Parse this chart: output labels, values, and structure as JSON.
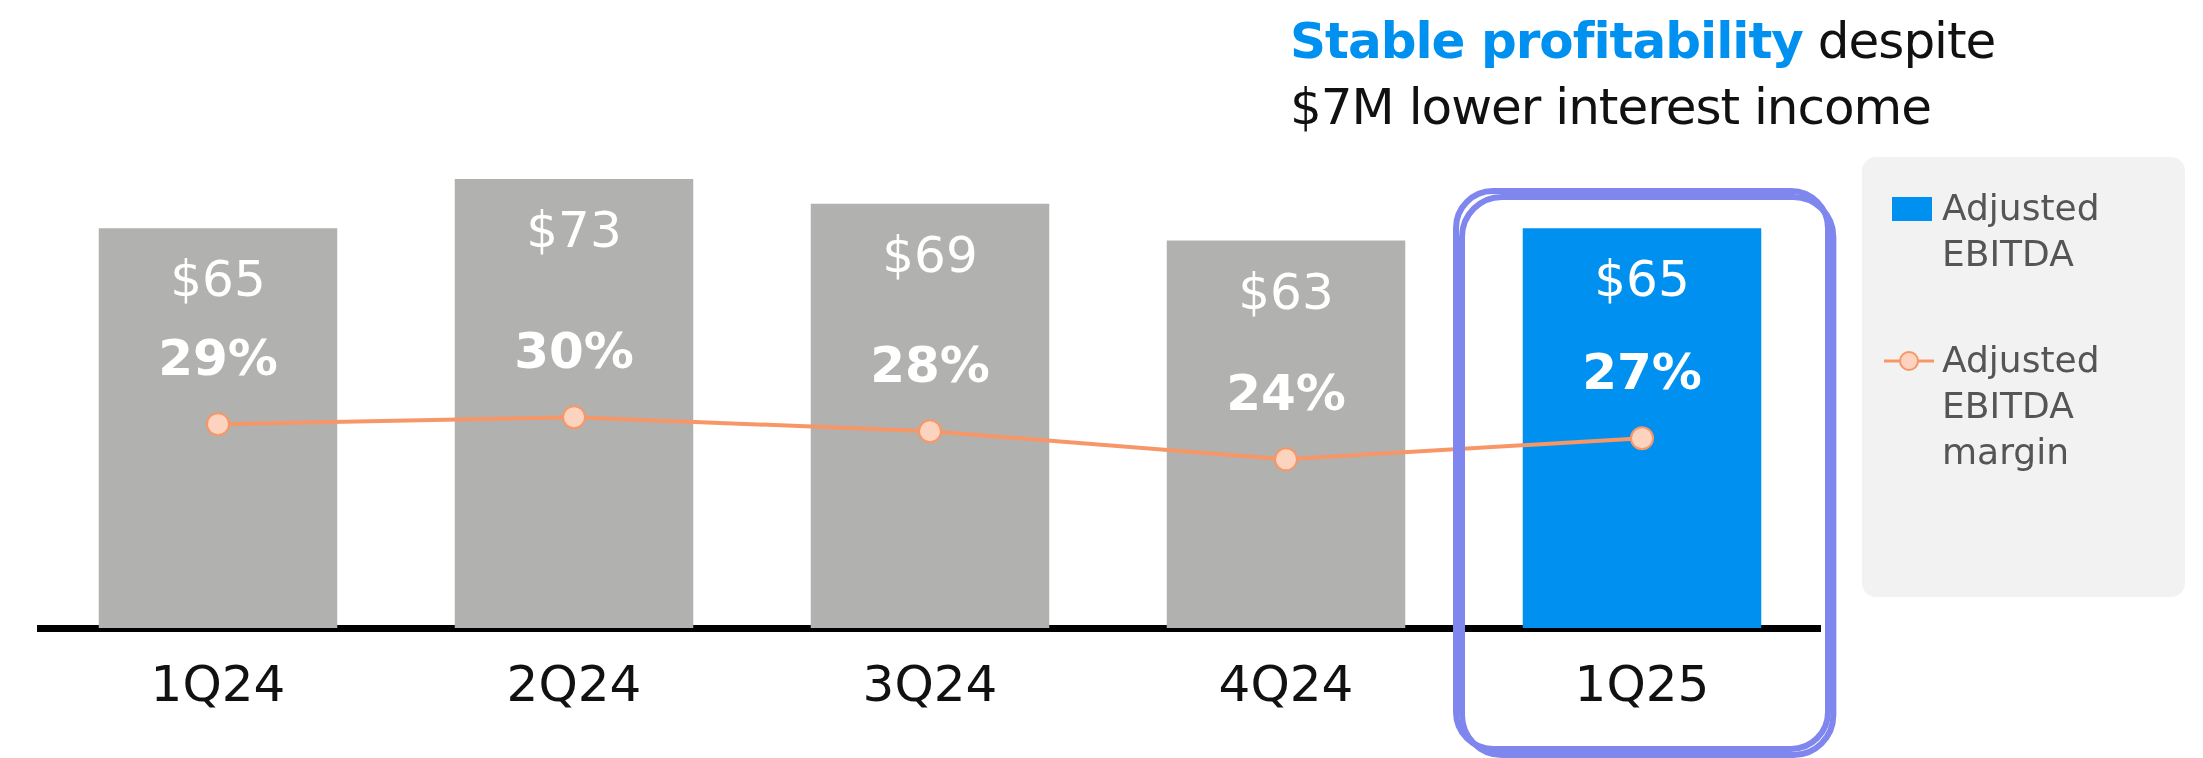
{
  "chart_data": {
    "type": "bar",
    "title": "Stable profitability despite $7M lower interest income",
    "categories": [
      "1Q24",
      "2Q24",
      "3Q24",
      "4Q24",
      "1Q25"
    ],
    "series": [
      {
        "name": "Adjusted EBITDA",
        "type": "bar",
        "color": "#0091f0",
        "colors": [
          "#b1b1af",
          "#b1b1af",
          "#b1b1af",
          "#b1b1af",
          "#0091f0"
        ],
        "values": [
          65,
          73,
          69,
          63,
          65
        ],
        "value_labels": [
          "$65",
          "$73",
          "$69",
          "$63",
          "$65"
        ]
      },
      {
        "name": "Adjusted EBITDA margin",
        "type": "line",
        "axis": "y2",
        "color": "#f79767",
        "marker": "circle",
        "values": [
          29,
          30,
          28,
          24,
          27
        ],
        "value_labels": [
          "29%",
          "30%",
          "28%",
          "24%",
          "27%"
        ]
      }
    ],
    "tick_labels": "x",
    "grid": false,
    "legend": "right"
  }
}
